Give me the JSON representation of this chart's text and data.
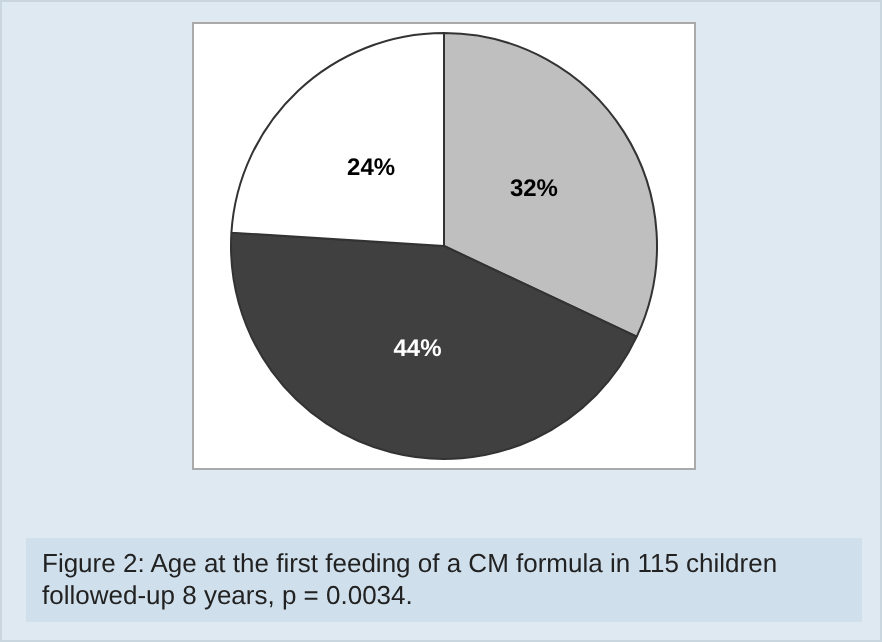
{
  "chart_data": {
    "type": "pie",
    "categories": [
      null,
      null,
      null
    ],
    "values": [
      32,
      44,
      24
    ],
    "colors": [
      "#bfbfbf",
      "#404040",
      "#ffffff"
    ],
    "value_labels": [
      "32%",
      "44%",
      "24%"
    ],
    "annotations": [
      "Figure 2: Age at the first feeding of a CM formula in 115 children followed-up 8 years, p = 0.0034."
    ]
  }
}
